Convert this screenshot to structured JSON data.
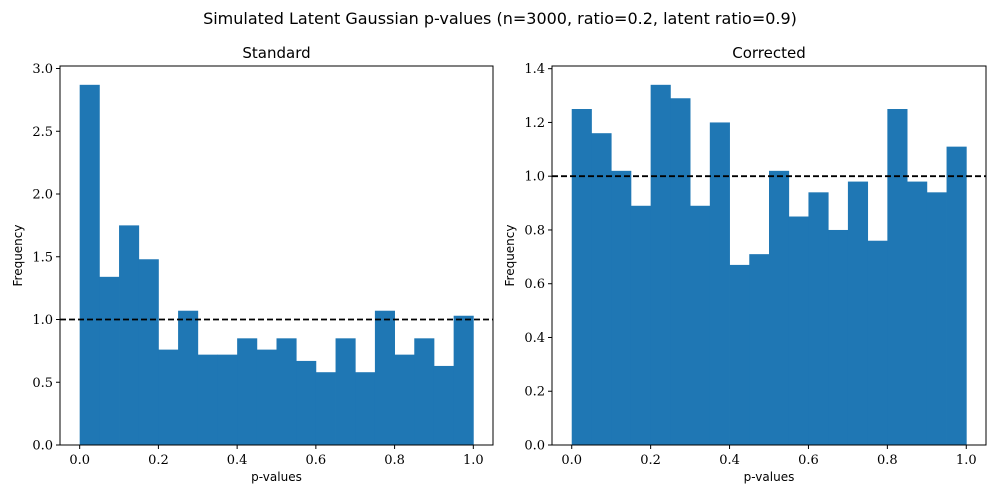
{
  "figure": {
    "suptitle": "Simulated Latent Gaussian p-values (n=3000, ratio=0.2, latent ratio=0.9)"
  },
  "colors": {
    "bar": "#1f77b4",
    "reference_line": "#000000",
    "axes": "#000000"
  },
  "chart_data": [
    {
      "type": "bar",
      "title": "Standard",
      "xlabel": "p-values",
      "ylabel": "Frequency",
      "bin_edges": [
        0.0,
        0.05,
        0.1,
        0.15,
        0.2,
        0.25,
        0.3,
        0.35,
        0.4,
        0.45,
        0.5,
        0.55,
        0.6,
        0.65,
        0.7,
        0.75,
        0.8,
        0.85,
        0.9,
        0.95,
        1.0
      ],
      "values": [
        2.87,
        1.34,
        1.75,
        1.48,
        0.76,
        1.07,
        0.72,
        0.72,
        0.85,
        0.76,
        0.85,
        0.67,
        0.58,
        0.85,
        0.58,
        1.07,
        0.72,
        0.85,
        0.63,
        1.03
      ],
      "xlim": [
        -0.05,
        1.05
      ],
      "ylim": [
        0.0,
        3.02
      ],
      "xticks": [
        0.0,
        0.2,
        0.4,
        0.6,
        0.8,
        1.0
      ],
      "xtick_labels": [
        "0.0",
        "0.2",
        "0.4",
        "0.6",
        "0.8",
        "1.0"
      ],
      "yticks": [
        0.0,
        0.5,
        1.0,
        1.5,
        2.0,
        2.5,
        3.0
      ],
      "ytick_labels": [
        "0.0",
        "0.5",
        "1.0",
        "1.5",
        "2.0",
        "2.5",
        "3.0"
      ],
      "reference_line": {
        "y": 1.0,
        "style": "dashed"
      },
      "grid": false,
      "legend": "none"
    },
    {
      "type": "bar",
      "title": "Corrected",
      "xlabel": "p-values",
      "ylabel": "Frequency",
      "bin_edges": [
        0.0,
        0.05,
        0.1,
        0.15,
        0.2,
        0.25,
        0.3,
        0.35,
        0.4,
        0.45,
        0.5,
        0.55,
        0.6,
        0.65,
        0.7,
        0.75,
        0.8,
        0.85,
        0.9,
        0.95,
        1.0
      ],
      "values": [
        1.25,
        1.16,
        1.02,
        0.89,
        1.34,
        1.29,
        0.89,
        1.2,
        0.67,
        0.71,
        1.02,
        0.85,
        0.94,
        0.8,
        0.98,
        0.76,
        1.25,
        0.98,
        0.94,
        1.11
      ],
      "xlim": [
        -0.05,
        1.05
      ],
      "ylim": [
        0.0,
        1.41
      ],
      "xticks": [
        0.0,
        0.2,
        0.4,
        0.6,
        0.8,
        1.0
      ],
      "xtick_labels": [
        "0.0",
        "0.2",
        "0.4",
        "0.6",
        "0.8",
        "1.0"
      ],
      "yticks": [
        0.0,
        0.2,
        0.4,
        0.6,
        0.8,
        1.0,
        1.2,
        1.4
      ],
      "ytick_labels": [
        "0.0",
        "0.2",
        "0.4",
        "0.6",
        "0.8",
        "1.0",
        "1.2",
        "1.4"
      ],
      "reference_line": {
        "y": 1.0,
        "style": "dashed"
      },
      "grid": false,
      "legend": "none"
    }
  ]
}
